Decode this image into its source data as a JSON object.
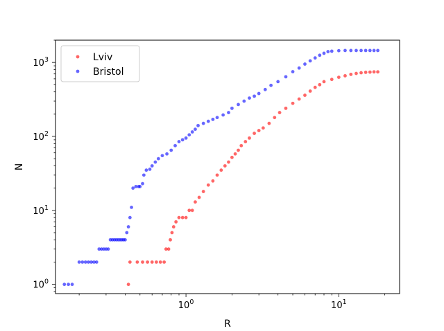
{
  "chart_data": {
    "type": "scatter",
    "title": "",
    "xlabel": "R",
    "ylabel": "N",
    "xscale": "log",
    "yscale": "log",
    "xlim": [
      0.14,
      25
    ],
    "ylim": [
      0.75,
      2000
    ],
    "xticks": [
      {
        "value": 1,
        "base": "10",
        "exp": "0"
      },
      {
        "value": 10,
        "base": "10",
        "exp": "1"
      }
    ],
    "yticks": [
      {
        "value": 1,
        "base": "10",
        "exp": "0"
      },
      {
        "value": 10,
        "base": "10",
        "exp": "1"
      },
      {
        "value": 100,
        "base": "10",
        "exp": "2"
      },
      {
        "value": 1000,
        "base": "10",
        "exp": "3"
      }
    ],
    "legend_position": "upper-left",
    "grid": false,
    "series": [
      {
        "name": "Lviv",
        "color": "#ff0000",
        "points": [
          [
            0.42,
            1
          ],
          [
            0.43,
            2
          ],
          [
            0.48,
            2
          ],
          [
            0.52,
            2
          ],
          [
            0.56,
            2
          ],
          [
            0.6,
            2
          ],
          [
            0.64,
            2
          ],
          [
            0.68,
            2
          ],
          [
            0.72,
            2
          ],
          [
            0.74,
            3
          ],
          [
            0.77,
            3
          ],
          [
            0.79,
            4
          ],
          [
            0.81,
            5
          ],
          [
            0.83,
            6
          ],
          [
            0.86,
            7
          ],
          [
            0.9,
            8
          ],
          [
            0.95,
            8
          ],
          [
            1.0,
            8
          ],
          [
            1.05,
            10
          ],
          [
            1.1,
            10
          ],
          [
            1.15,
            13
          ],
          [
            1.22,
            15
          ],
          [
            1.3,
            18
          ],
          [
            1.4,
            22
          ],
          [
            1.5,
            25
          ],
          [
            1.6,
            30
          ],
          [
            1.7,
            35
          ],
          [
            1.8,
            40
          ],
          [
            1.9,
            45
          ],
          [
            2.0,
            52
          ],
          [
            2.1,
            58
          ],
          [
            2.2,
            65
          ],
          [
            2.3,
            75
          ],
          [
            2.45,
            85
          ],
          [
            2.6,
            95
          ],
          [
            2.8,
            110
          ],
          [
            3.0,
            120
          ],
          [
            3.2,
            130
          ],
          [
            3.5,
            150
          ],
          [
            3.8,
            180
          ],
          [
            4.1,
            210
          ],
          [
            4.5,
            240
          ],
          [
            5.0,
            280
          ],
          [
            5.5,
            320
          ],
          [
            6.0,
            360
          ],
          [
            6.5,
            410
          ],
          [
            7.0,
            460
          ],
          [
            7.5,
            500
          ],
          [
            8.0,
            550
          ],
          [
            9.0,
            590
          ],
          [
            10.0,
            630
          ],
          [
            11.0,
            660
          ],
          [
            12.0,
            690
          ],
          [
            13.0,
            710
          ],
          [
            14.0,
            725
          ],
          [
            15.0,
            735
          ],
          [
            16.0,
            740
          ],
          [
            17.0,
            745
          ],
          [
            18.0,
            745
          ]
        ]
      },
      {
        "name": "Bristol",
        "color": "#0000ff",
        "points": [
          [
            0.16,
            1
          ],
          [
            0.17,
            1
          ],
          [
            0.18,
            1
          ],
          [
            0.2,
            2
          ],
          [
            0.21,
            2
          ],
          [
            0.22,
            2
          ],
          [
            0.23,
            2
          ],
          [
            0.24,
            2
          ],
          [
            0.25,
            2
          ],
          [
            0.26,
            2
          ],
          [
            0.27,
            3
          ],
          [
            0.28,
            3
          ],
          [
            0.29,
            3
          ],
          [
            0.3,
            3
          ],
          [
            0.31,
            3
          ],
          [
            0.32,
            4
          ],
          [
            0.33,
            4
          ],
          [
            0.34,
            4
          ],
          [
            0.35,
            4
          ],
          [
            0.36,
            4
          ],
          [
            0.37,
            4
          ],
          [
            0.38,
            4
          ],
          [
            0.39,
            4
          ],
          [
            0.4,
            4
          ],
          [
            0.41,
            5
          ],
          [
            0.42,
            6
          ],
          [
            0.43,
            8
          ],
          [
            0.44,
            11
          ],
          [
            0.45,
            20
          ],
          [
            0.47,
            21
          ],
          [
            0.49,
            21
          ],
          [
            0.5,
            21
          ],
          [
            0.52,
            23
          ],
          [
            0.53,
            30
          ],
          [
            0.55,
            35
          ],
          [
            0.58,
            36
          ],
          [
            0.6,
            40
          ],
          [
            0.63,
            45
          ],
          [
            0.66,
            50
          ],
          [
            0.7,
            55
          ],
          [
            0.75,
            58
          ],
          [
            0.8,
            65
          ],
          [
            0.85,
            75
          ],
          [
            0.9,
            85
          ],
          [
            0.95,
            90
          ],
          [
            1.0,
            95
          ],
          [
            1.05,
            105
          ],
          [
            1.1,
            115
          ],
          [
            1.15,
            125
          ],
          [
            1.2,
            140
          ],
          [
            1.3,
            150
          ],
          [
            1.4,
            160
          ],
          [
            1.5,
            170
          ],
          [
            1.6,
            180
          ],
          [
            1.75,
            195
          ],
          [
            1.9,
            210
          ],
          [
            2.0,
            240
          ],
          [
            2.2,
            270
          ],
          [
            2.4,
            300
          ],
          [
            2.6,
            330
          ],
          [
            2.8,
            350
          ],
          [
            3.0,
            380
          ],
          [
            3.3,
            430
          ],
          [
            3.6,
            490
          ],
          [
            4.0,
            550
          ],
          [
            4.5,
            640
          ],
          [
            5.0,
            750
          ],
          [
            5.5,
            840
          ],
          [
            6.0,
            950
          ],
          [
            6.5,
            1050
          ],
          [
            7.0,
            1150
          ],
          [
            7.5,
            1250
          ],
          [
            8.0,
            1330
          ],
          [
            8.5,
            1400
          ],
          [
            9.0,
            1420
          ],
          [
            10.0,
            1440
          ],
          [
            11.0,
            1450
          ],
          [
            12.0,
            1450
          ],
          [
            13.0,
            1450
          ],
          [
            14.0,
            1450
          ],
          [
            15.0,
            1450
          ],
          [
            16.0,
            1450
          ],
          [
            17.0,
            1450
          ],
          [
            18.0,
            1450
          ]
        ]
      }
    ]
  }
}
